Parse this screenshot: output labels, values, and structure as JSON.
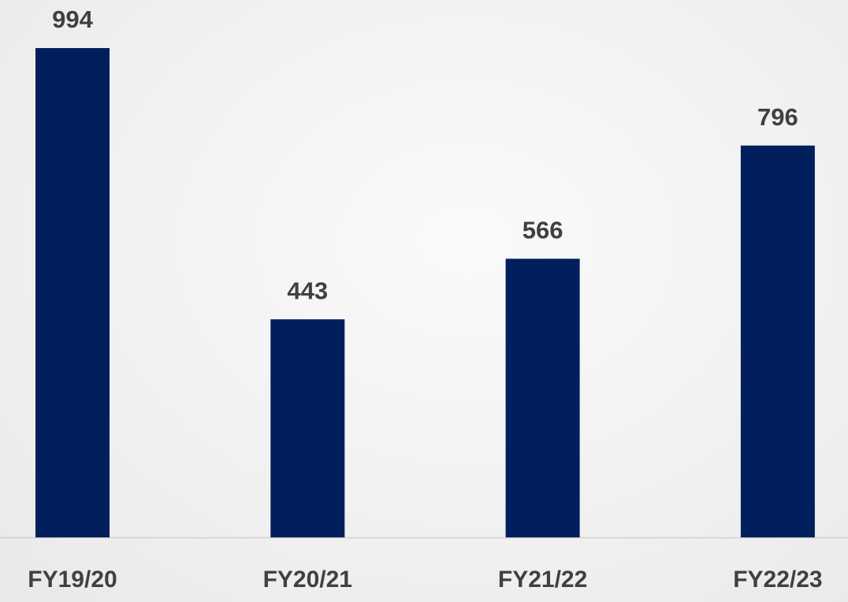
{
  "chart_data": {
    "type": "bar",
    "categories": [
      "FY19/20",
      "FY20/21",
      "FY21/22",
      "FY22/23"
    ],
    "values": [
      994,
      443,
      566,
      796
    ],
    "color": "#001f5c"
  }
}
